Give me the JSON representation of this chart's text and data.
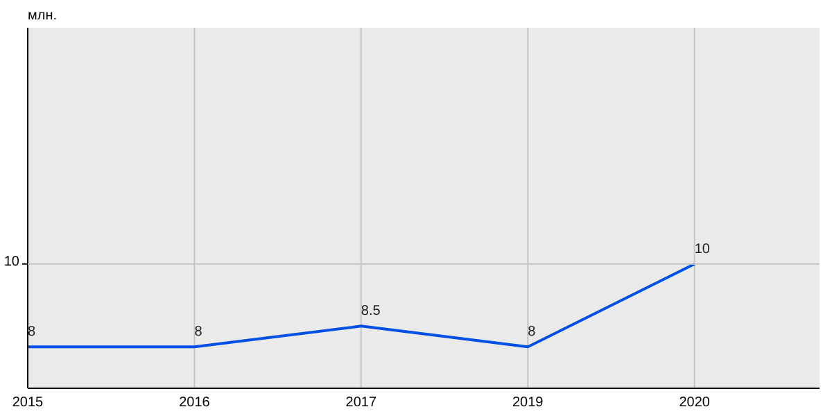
{
  "chart_data": {
    "type": "line",
    "ylabel": "млн.",
    "categories": [
      "2015",
      "2016",
      "2017",
      "2019",
      "2020"
    ],
    "series": [
      {
        "color": "#0050e6",
        "values": [
          8,
          8,
          8.5,
          8,
          10
        ]
      }
    ],
    "ylim": [
      7,
      15.7
    ],
    "ref_lines": [
      {
        "axis": "y",
        "value": 10,
        "label": "10",
        "color": "#c4c4c4"
      }
    ],
    "grid": "x",
    "data_labels": true,
    "marker": "none",
    "line_style": "solid"
  }
}
